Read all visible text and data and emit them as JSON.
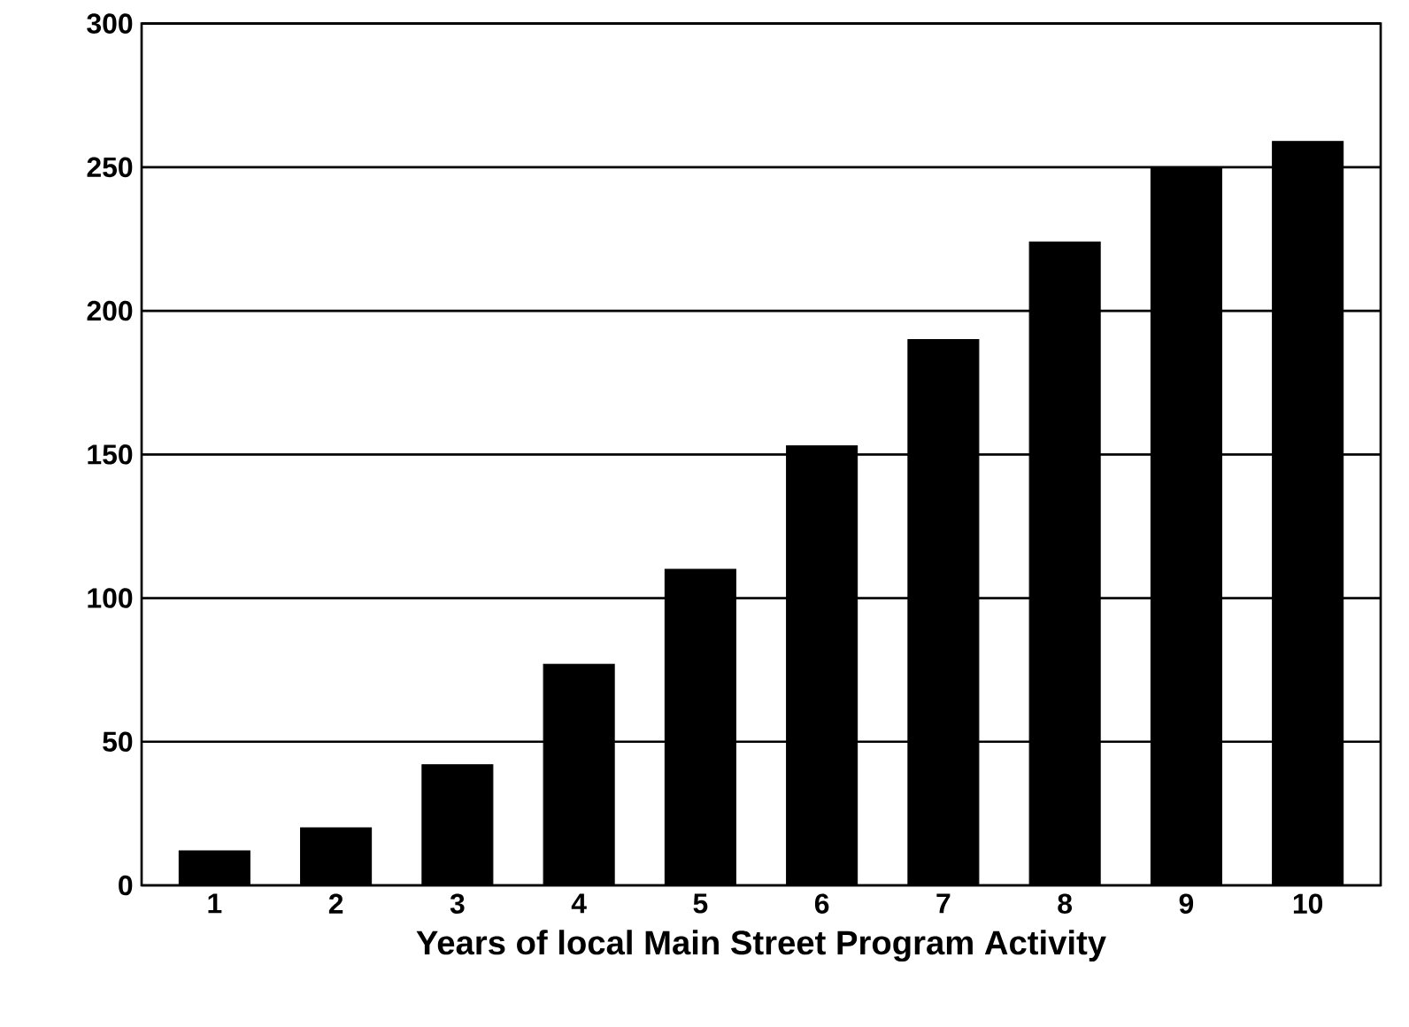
{
  "chart_data": {
    "type": "bar",
    "xlabel": "Years of local Main Street Program Activity",
    "categories": [
      "1",
      "2",
      "3",
      "4",
      "5",
      "6",
      "7",
      "8",
      "9",
      "10"
    ],
    "values": [
      12,
      20,
      42,
      77,
      110,
      153,
      190,
      224,
      250,
      259
    ],
    "color": "#000000",
    "ylim": [
      0,
      300
    ],
    "yticks": [
      0,
      50,
      100,
      150,
      200,
      250,
      300
    ],
    "grid": "y"
  }
}
